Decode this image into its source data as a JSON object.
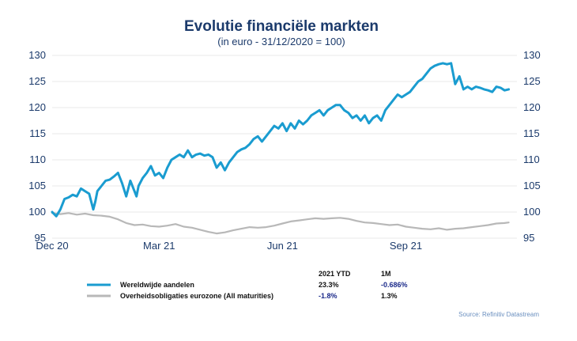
{
  "chart_data": {
    "type": "line",
    "title": "Evolutie financiële markten",
    "subtitle": "(in euro - 31/12/2020 = 100)",
    "ylim": [
      95,
      130
    ],
    "y_ticks": [
      "95",
      "100",
      "105",
      "110",
      "115",
      "120",
      "125",
      "130"
    ],
    "x_ticks": [
      "Dec 20",
      "Mar 21",
      "Jun 21",
      "Sep 21"
    ],
    "x_tick_months": [
      0,
      2.6,
      5.6,
      8.6
    ],
    "x_range_months": [
      0,
      11.3
    ],
    "grid": true,
    "legend_placement": "bottom",
    "legend_columns": [
      "2021 YTD",
      "1M"
    ],
    "series": [
      {
        "name": "Wereldwijde aandelen",
        "color": "#1a9cd0",
        "stats": [
          "23.3%",
          "-0.686%"
        ],
        "stat_colors": [
          "#111111",
          "#1b2a8a"
        ],
        "x": [
          0,
          0.1,
          0.2,
          0.3,
          0.4,
          0.5,
          0.6,
          0.7,
          0.8,
          0.9,
          1.0,
          1.05,
          1.1,
          1.2,
          1.3,
          1.4,
          1.5,
          1.6,
          1.7,
          1.8,
          1.9,
          2.0,
          2.05,
          2.1,
          2.2,
          2.3,
          2.4,
          2.5,
          2.6,
          2.7,
          2.8,
          2.9,
          3.0,
          3.1,
          3.2,
          3.3,
          3.4,
          3.5,
          3.6,
          3.7,
          3.8,
          3.9,
          4.0,
          4.1,
          4.2,
          4.3,
          4.4,
          4.5,
          4.6,
          4.7,
          4.8,
          4.9,
          5.0,
          5.1,
          5.2,
          5.3,
          5.4,
          5.5,
          5.6,
          5.7,
          5.8,
          5.9,
          6.0,
          6.1,
          6.2,
          6.3,
          6.4,
          6.5,
          6.6,
          6.7,
          6.8,
          6.9,
          7.0,
          7.1,
          7.2,
          7.3,
          7.4,
          7.5,
          7.6,
          7.7,
          7.8,
          7.9,
          8.0,
          8.1,
          8.2,
          8.3,
          8.4,
          8.5,
          8.6,
          8.7,
          8.8,
          8.9,
          9.0,
          9.1,
          9.2,
          9.3,
          9.4,
          9.5,
          9.6,
          9.7,
          9.8,
          9.9,
          10.0,
          10.1,
          10.2,
          10.3,
          10.4,
          10.5,
          10.6,
          10.7,
          10.75,
          10.8,
          10.9,
          11.0,
          11.1
        ],
        "values": [
          100,
          99.2,
          100.5,
          102.5,
          102.8,
          103.3,
          103,
          104.5,
          104,
          103.5,
          100.5,
          102,
          104,
          105,
          106,
          106.2,
          106.8,
          107.5,
          105.5,
          103,
          106,
          104,
          103,
          105,
          106.5,
          107.5,
          108.8,
          107,
          107.5,
          106.5,
          108.5,
          110,
          110.5,
          111,
          110.5,
          111.8,
          110.5,
          111,
          111.2,
          110.8,
          111,
          110.5,
          108.5,
          109.5,
          108,
          109.5,
          110.5,
          111.5,
          112,
          112.3,
          113,
          114,
          114.5,
          113.5,
          114.5,
          115.5,
          116.5,
          116,
          117,
          115.5,
          117,
          116,
          117.5,
          116.8,
          117.5,
          118.5,
          119,
          119.5,
          118.5,
          119.5,
          120,
          120.5,
          120.5,
          119.5,
          119,
          118,
          118.5,
          117.5,
          118.5,
          117,
          118,
          118.5,
          117.5,
          119.5,
          120.5,
          121.5,
          122.5,
          122,
          122.5,
          123,
          124,
          125,
          125.5,
          126.5,
          127.5,
          128,
          128.3,
          128.5,
          128.3,
          128.5,
          124.5,
          126,
          123.5,
          124,
          123.5,
          124,
          123.8,
          123.5,
          123.3,
          123,
          123.5,
          124,
          123.8,
          123.3,
          123.5
        ],
        "display_y_offset": 0
      },
      {
        "name": "Overheidsobligaties eurozone (All maturities)",
        "color": "#b8b8b8",
        "stats": [
          "-1.8%",
          "1.3%"
        ],
        "stat_colors": [
          "#1b2a8a",
          "#111111"
        ],
        "x": [
          0,
          0.2,
          0.4,
          0.6,
          0.8,
          1.0,
          1.2,
          1.4,
          1.6,
          1.8,
          2.0,
          2.2,
          2.4,
          2.6,
          2.8,
          3.0,
          3.2,
          3.4,
          3.6,
          3.8,
          4.0,
          4.2,
          4.4,
          4.6,
          4.8,
          5.0,
          5.2,
          5.4,
          5.6,
          5.8,
          6.0,
          6.2,
          6.4,
          6.6,
          6.8,
          7.0,
          7.2,
          7.4,
          7.6,
          7.8,
          8.0,
          8.2,
          8.4,
          8.6,
          8.8,
          9.0,
          9.2,
          9.4,
          9.6,
          9.8,
          10.0,
          10.2,
          10.4,
          10.6,
          10.8,
          11.0,
          11.1
        ],
        "values": [
          99.8,
          99.6,
          99.8,
          99.5,
          99.7,
          99.4,
          99.3,
          99.1,
          98.6,
          97.9,
          97.5,
          97.6,
          97.3,
          97.2,
          97.4,
          97.7,
          97.2,
          97.0,
          96.6,
          96.2,
          95.9,
          96.1,
          96.5,
          96.8,
          97.1,
          97.0,
          97.1,
          97.4,
          97.8,
          98.2,
          98.4,
          98.6,
          98.8,
          98.7,
          98.8,
          98.9,
          98.7,
          98.3,
          98.0,
          97.9,
          97.7,
          97.5,
          97.6,
          97.2,
          97.0,
          96.8,
          96.7,
          96.9,
          96.6,
          96.8,
          96.9,
          97.1,
          97.3,
          97.5,
          97.8,
          97.9,
          98.0
        ],
        "display_y_offset": 0
      }
    ],
    "source": "Source: Refinitiv Datastream"
  }
}
